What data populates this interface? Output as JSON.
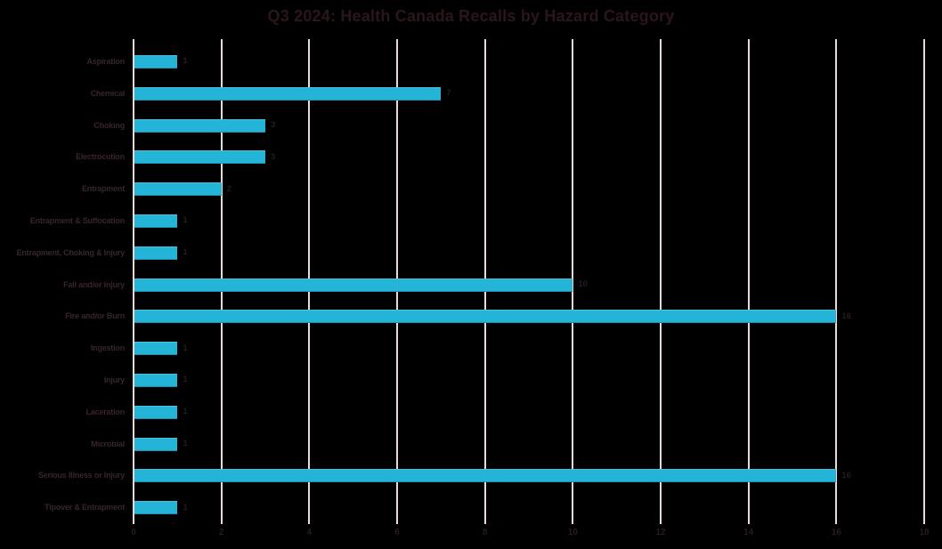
{
  "page": {
    "background_color": "#000000"
  },
  "chart_data": {
    "type": "bar",
    "orientation": "horizontal",
    "title": "Q3 2024: Health Canada Recalls by Hazard Category",
    "categories": [
      "Aspiration",
      "Chemical",
      "Choking",
      "Electrocution",
      "Entrapment",
      "Entrapment & Suffocation",
      "Entrapment, Choking & Injury",
      "Fall and/or Injury",
      "Fire and/or Burn",
      "Ingestion",
      "Injury",
      "Laceration",
      "Microbial",
      "Serious Illness or Injury",
      "Tipover & Entrapment"
    ],
    "values": [
      1,
      7,
      3,
      3,
      2,
      1,
      1,
      10,
      16,
      1,
      1,
      1,
      1,
      16,
      1
    ],
    "data_labels": [
      1,
      7,
      3,
      3,
      2,
      1,
      1,
      10,
      16,
      1,
      1,
      1,
      1,
      16,
      1
    ],
    "xlabel": "",
    "ylabel": "",
    "xlim": [
      0,
      18
    ],
    "xticks": [
      0,
      2,
      4,
      6,
      8,
      10,
      12,
      14,
      16,
      18
    ],
    "grid": "vertical",
    "legend": "none",
    "bar_color": "#23b4d7",
    "gridline_color": "#ead9d9",
    "title_color": "#2b161e",
    "text_color": "#38242e",
    "value_color": "#2a1a21"
  }
}
